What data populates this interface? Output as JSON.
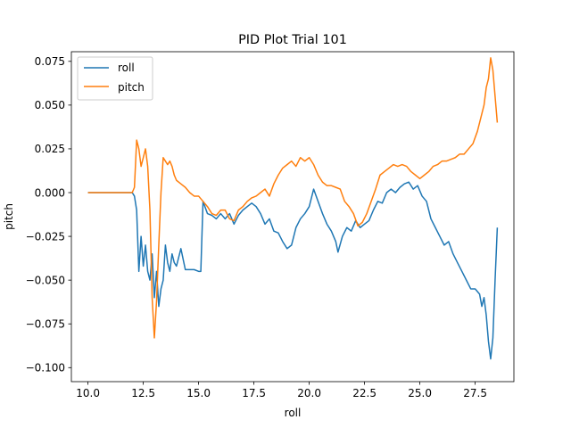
{
  "chart_data": {
    "type": "line",
    "title": "PID Plot Trial 101",
    "xlabel": "roll",
    "ylabel": "pitch",
    "xlim": [
      9.25,
      29.25
    ],
    "ylim": [
      -0.108,
      0.0805
    ],
    "x_ticks": [
      10.0,
      12.5,
      15.0,
      17.5,
      20.0,
      22.5,
      25.0,
      27.5
    ],
    "x_tick_labels": [
      "10.0",
      "12.5",
      "15.0",
      "17.5",
      "20.0",
      "22.5",
      "25.0",
      "27.5"
    ],
    "y_ticks": [
      -0.1,
      -0.075,
      -0.05,
      -0.025,
      0.0,
      0.025,
      0.05,
      0.075
    ],
    "y_tick_labels": [
      "−0.100",
      "−0.075",
      "−0.050",
      "−0.025",
      "0.000",
      "0.025",
      "0.050",
      "0.075"
    ],
    "grid": false,
    "legend_position": "upper-left",
    "series": [
      {
        "name": "roll",
        "color": "#1f77b4",
        "points": [
          [
            10.0,
            0.0
          ],
          [
            11.0,
            0.0
          ],
          [
            12.0,
            0.0
          ],
          [
            12.1,
            -0.002
          ],
          [
            12.2,
            -0.01
          ],
          [
            12.3,
            -0.045
          ],
          [
            12.4,
            -0.025
          ],
          [
            12.5,
            -0.042
          ],
          [
            12.6,
            -0.03
          ],
          [
            12.7,
            -0.045
          ],
          [
            12.8,
            -0.05
          ],
          [
            12.9,
            -0.035
          ],
          [
            13.0,
            -0.06
          ],
          [
            13.1,
            -0.045
          ],
          [
            13.2,
            -0.065
          ],
          [
            13.3,
            -0.055
          ],
          [
            13.4,
            -0.05
          ],
          [
            13.5,
            -0.03
          ],
          [
            13.6,
            -0.04
          ],
          [
            13.7,
            -0.045
          ],
          [
            13.8,
            -0.035
          ],
          [
            13.9,
            -0.04
          ],
          [
            14.0,
            -0.042
          ],
          [
            14.2,
            -0.032
          ],
          [
            14.4,
            -0.044
          ],
          [
            14.8,
            -0.044
          ],
          [
            15.0,
            -0.045
          ],
          [
            15.1,
            -0.045
          ],
          [
            15.2,
            -0.005
          ],
          [
            15.4,
            -0.012
          ],
          [
            15.6,
            -0.013
          ],
          [
            15.8,
            -0.015
          ],
          [
            16.0,
            -0.012
          ],
          [
            16.2,
            -0.015
          ],
          [
            16.4,
            -0.012
          ],
          [
            16.6,
            -0.018
          ],
          [
            16.8,
            -0.013
          ],
          [
            17.0,
            -0.01
          ],
          [
            17.2,
            -0.008
          ],
          [
            17.4,
            -0.006
          ],
          [
            17.6,
            -0.008
          ],
          [
            17.8,
            -0.012
          ],
          [
            18.0,
            -0.018
          ],
          [
            18.2,
            -0.015
          ],
          [
            18.4,
            -0.022
          ],
          [
            18.6,
            -0.023
          ],
          [
            18.8,
            -0.028
          ],
          [
            19.0,
            -0.032
          ],
          [
            19.2,
            -0.03
          ],
          [
            19.4,
            -0.02
          ],
          [
            19.6,
            -0.015
          ],
          [
            19.8,
            -0.012
          ],
          [
            20.0,
            -0.008
          ],
          [
            20.2,
            0.002
          ],
          [
            20.4,
            -0.005
          ],
          [
            20.6,
            -0.012
          ],
          [
            20.8,
            -0.018
          ],
          [
            21.0,
            -0.022
          ],
          [
            21.2,
            -0.028
          ],
          [
            21.3,
            -0.034
          ],
          [
            21.5,
            -0.025
          ],
          [
            21.7,
            -0.02
          ],
          [
            21.9,
            -0.022
          ],
          [
            22.1,
            -0.016
          ],
          [
            22.3,
            -0.02
          ],
          [
            22.5,
            -0.018
          ],
          [
            22.7,
            -0.016
          ],
          [
            22.9,
            -0.01
          ],
          [
            23.1,
            -0.005
          ],
          [
            23.3,
            -0.006
          ],
          [
            23.5,
            0.0
          ],
          [
            23.7,
            0.002
          ],
          [
            23.9,
            0.0
          ],
          [
            24.1,
            0.003
          ],
          [
            24.3,
            0.005
          ],
          [
            24.5,
            0.006
          ],
          [
            24.7,
            0.002
          ],
          [
            24.9,
            0.004
          ],
          [
            25.1,
            -0.002
          ],
          [
            25.3,
            -0.005
          ],
          [
            25.5,
            -0.015
          ],
          [
            25.7,
            -0.02
          ],
          [
            25.9,
            -0.025
          ],
          [
            26.1,
            -0.03
          ],
          [
            26.3,
            -0.028
          ],
          [
            26.5,
            -0.035
          ],
          [
            26.7,
            -0.04
          ],
          [
            26.9,
            -0.045
          ],
          [
            27.1,
            -0.05
          ],
          [
            27.3,
            -0.055
          ],
          [
            27.5,
            -0.055
          ],
          [
            27.7,
            -0.058
          ],
          [
            27.8,
            -0.065
          ],
          [
            27.9,
            -0.06
          ],
          [
            28.0,
            -0.07
          ],
          [
            28.1,
            -0.085
          ],
          [
            28.2,
            -0.095
          ],
          [
            28.3,
            -0.083
          ],
          [
            28.4,
            -0.05
          ],
          [
            28.5,
            -0.02
          ]
        ]
      },
      {
        "name": "pitch",
        "color": "#ff7f0e",
        "points": [
          [
            10.0,
            0.0
          ],
          [
            11.0,
            0.0
          ],
          [
            12.0,
            0.0
          ],
          [
            12.1,
            0.003
          ],
          [
            12.2,
            0.03
          ],
          [
            12.3,
            0.025
          ],
          [
            12.4,
            0.015
          ],
          [
            12.5,
            0.02
          ],
          [
            12.6,
            0.025
          ],
          [
            12.7,
            0.015
          ],
          [
            12.8,
            -0.01
          ],
          [
            12.9,
            -0.06
          ],
          [
            13.0,
            -0.083
          ],
          [
            13.1,
            -0.062
          ],
          [
            13.2,
            -0.03
          ],
          [
            13.3,
            0.0
          ],
          [
            13.4,
            0.02
          ],
          [
            13.5,
            0.018
          ],
          [
            13.6,
            0.016
          ],
          [
            13.7,
            0.018
          ],
          [
            13.8,
            0.015
          ],
          [
            13.9,
            0.01
          ],
          [
            14.0,
            0.007
          ],
          [
            14.2,
            0.005
          ],
          [
            14.4,
            0.003
          ],
          [
            14.6,
            0.0
          ],
          [
            14.8,
            -0.002
          ],
          [
            15.0,
            -0.002
          ],
          [
            15.2,
            -0.005
          ],
          [
            15.4,
            -0.008
          ],
          [
            15.6,
            -0.012
          ],
          [
            15.8,
            -0.013
          ],
          [
            16.0,
            -0.01
          ],
          [
            16.2,
            -0.01
          ],
          [
            16.4,
            -0.015
          ],
          [
            16.6,
            -0.016
          ],
          [
            16.8,
            -0.01
          ],
          [
            17.0,
            -0.008
          ],
          [
            17.2,
            -0.005
          ],
          [
            17.4,
            -0.003
          ],
          [
            17.6,
            -0.002
          ],
          [
            17.8,
            0.0
          ],
          [
            18.0,
            0.002
          ],
          [
            18.2,
            -0.002
          ],
          [
            18.4,
            0.005
          ],
          [
            18.6,
            0.01
          ],
          [
            18.8,
            0.014
          ],
          [
            19.0,
            0.016
          ],
          [
            19.2,
            0.018
          ],
          [
            19.4,
            0.015
          ],
          [
            19.6,
            0.02
          ],
          [
            19.8,
            0.018
          ],
          [
            20.0,
            0.02
          ],
          [
            20.2,
            0.016
          ],
          [
            20.4,
            0.01
          ],
          [
            20.6,
            0.006
          ],
          [
            20.8,
            0.004
          ],
          [
            21.0,
            0.004
          ],
          [
            21.2,
            0.003
          ],
          [
            21.4,
            0.002
          ],
          [
            21.6,
            -0.005
          ],
          [
            21.8,
            -0.008
          ],
          [
            22.0,
            -0.012
          ],
          [
            22.2,
            -0.019
          ],
          [
            22.4,
            -0.017
          ],
          [
            22.6,
            -0.012
          ],
          [
            22.8,
            -0.005
          ],
          [
            23.0,
            0.002
          ],
          [
            23.2,
            0.01
          ],
          [
            23.4,
            0.012
          ],
          [
            23.6,
            0.014
          ],
          [
            23.8,
            0.016
          ],
          [
            24.0,
            0.015
          ],
          [
            24.2,
            0.016
          ],
          [
            24.4,
            0.015
          ],
          [
            24.6,
            0.012
          ],
          [
            24.8,
            0.01
          ],
          [
            25.0,
            0.008
          ],
          [
            25.2,
            0.01
          ],
          [
            25.4,
            0.012
          ],
          [
            25.6,
            0.015
          ],
          [
            25.8,
            0.016
          ],
          [
            26.0,
            0.018
          ],
          [
            26.2,
            0.018
          ],
          [
            26.4,
            0.019
          ],
          [
            26.6,
            0.02
          ],
          [
            26.8,
            0.022
          ],
          [
            27.0,
            0.022
          ],
          [
            27.2,
            0.025
          ],
          [
            27.4,
            0.028
          ],
          [
            27.6,
            0.035
          ],
          [
            27.8,
            0.045
          ],
          [
            27.9,
            0.05
          ],
          [
            28.0,
            0.06
          ],
          [
            28.1,
            0.065
          ],
          [
            28.2,
            0.077
          ],
          [
            28.3,
            0.07
          ],
          [
            28.4,
            0.055
          ],
          [
            28.5,
            0.04
          ]
        ]
      }
    ]
  }
}
